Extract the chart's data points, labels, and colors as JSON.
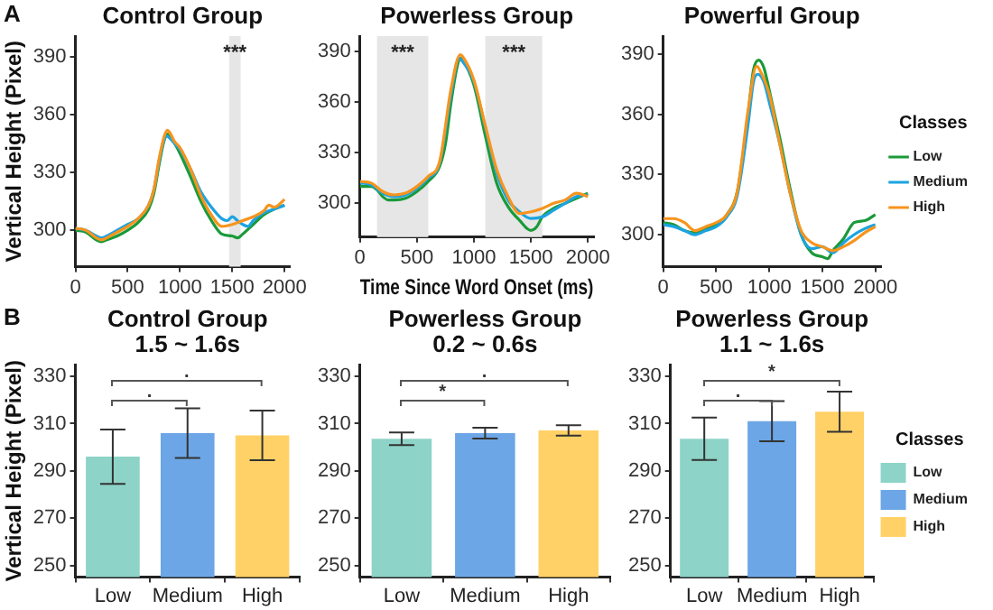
{
  "chart_data": [
    {
      "type": "line",
      "title": "Control Group",
      "ylabel": "Vertical Height (Pixel)",
      "annotations": [
        "A"
      ],
      "xlim": [
        0,
        2050
      ],
      "xticks": [
        0,
        500,
        1000,
        1500,
        2000
      ],
      "ylim": [
        281,
        401
      ],
      "yticks": [
        300,
        330,
        360,
        390
      ],
      "bands": [
        {
          "axis": "x",
          "from": 1470,
          "to": 1580,
          "label": "***",
          "color": "#e6e6e6"
        }
      ],
      "series": [
        {
          "color": "#1a9a3a",
          "x": [
            0,
            100,
            200,
            250,
            300,
            400,
            500,
            600,
            700,
            750,
            800,
            850,
            880,
            900,
            950,
            1000,
            1100,
            1200,
            1300,
            1400,
            1500,
            1550,
            1600,
            1700,
            1800,
            1900,
            2000
          ],
          "values": [
            300,
            299,
            295,
            294,
            295,
            297,
            300,
            304,
            311,
            319,
            334,
            347,
            350,
            349,
            345,
            340,
            328,
            315,
            305,
            298,
            297,
            296,
            298,
            303,
            308,
            311,
            313
          ]
        },
        {
          "color": "#1ca3e0",
          "x": [
            0,
            100,
            200,
            250,
            300,
            400,
            500,
            600,
            700,
            750,
            800,
            850,
            870,
            900,
            950,
            1000,
            1100,
            1200,
            1300,
            1400,
            1450,
            1500,
            1550,
            1600,
            1650,
            1700,
            1800,
            1900,
            2000
          ],
          "values": [
            301,
            300,
            297,
            296,
            297,
            300,
            303,
            306,
            313,
            321,
            336,
            347,
            349,
            348,
            345,
            342,
            332,
            320,
            312,
            306,
            305,
            307,
            305,
            303,
            302,
            305,
            309,
            311,
            313
          ]
        },
        {
          "color": "#f7941d",
          "x": [
            0,
            100,
            200,
            250,
            300,
            400,
            500,
            600,
            700,
            750,
            800,
            850,
            880,
            900,
            950,
            1000,
            1100,
            1200,
            1300,
            1400,
            1500,
            1600,
            1700,
            1800,
            1850,
            1900,
            2000
          ],
          "values": [
            301,
            300,
            296,
            295,
            296,
            299,
            302,
            306,
            313,
            321,
            337,
            349,
            352,
            351,
            346,
            343,
            332,
            318,
            308,
            302,
            303,
            305,
            307,
            310,
            313,
            312,
            316
          ]
        }
      ]
    },
    {
      "type": "line",
      "title": "Powerless Group",
      "xlabel": "Time Since Word Onset (ms)",
      "xlim": [
        0,
        2050
      ],
      "xticks": [
        0,
        500,
        1000,
        1500,
        2000
      ],
      "ylim": [
        280,
        399
      ],
      "yticks": [
        300,
        330,
        360,
        390
      ],
      "bands": [
        {
          "axis": "x",
          "from": 150,
          "to": 600,
          "label": "***",
          "color": "#e6e6e6"
        },
        {
          "axis": "x",
          "from": 1100,
          "to": 1600,
          "label": "***",
          "color": "#e6e6e6"
        }
      ],
      "series": [
        {
          "color": "#1a9a3a",
          "x": [
            0,
            100,
            150,
            200,
            250,
            300,
            400,
            500,
            600,
            700,
            750,
            800,
            850,
            880,
            900,
            1000,
            1100,
            1200,
            1300,
            1400,
            1500,
            1550,
            1600,
            1700,
            1800,
            1900,
            2000
          ],
          "values": [
            310,
            310,
            308,
            304,
            302,
            302,
            303,
            307,
            313,
            322,
            335,
            360,
            380,
            386,
            385,
            370,
            340,
            312,
            298,
            290,
            284,
            286,
            292,
            297,
            300,
            303,
            306
          ]
        },
        {
          "color": "#1ca3e0",
          "x": [
            0,
            100,
            200,
            300,
            400,
            500,
            600,
            700,
            800,
            870,
            900,
            1000,
            1100,
            1200,
            1300,
            1400,
            1500,
            1600,
            1700,
            1800,
            1900,
            2000
          ],
          "values": [
            312,
            311,
            306,
            304,
            305,
            309,
            315,
            324,
            365,
            386,
            384,
            372,
            345,
            318,
            302,
            295,
            291,
            292,
            296,
            300,
            304,
            305
          ]
        },
        {
          "color": "#f7941d",
          "x": [
            0,
            100,
            200,
            300,
            400,
            500,
            600,
            700,
            800,
            880,
            900,
            1000,
            1100,
            1200,
            1300,
            1400,
            1500,
            1600,
            1700,
            1800,
            1900,
            2000
          ],
          "values": [
            313,
            312,
            307,
            305,
            306,
            310,
            316,
            325,
            368,
            388,
            387,
            373,
            346,
            320,
            304,
            294,
            295,
            297,
            300,
            302,
            306,
            304
          ]
        }
      ]
    },
    {
      "type": "line",
      "title": "Powerful Group",
      "legend": "right",
      "legend_title": "Classes",
      "xlim": [
        0,
        2050
      ],
      "xticks": [
        0,
        500,
        1000,
        1500,
        2000
      ],
      "ylim": [
        284,
        399
      ],
      "yticks": [
        300,
        330,
        360,
        390
      ],
      "series": [
        {
          "name": "Low",
          "color": "#1a9a3a",
          "x": [
            0,
            100,
            200,
            300,
            400,
            500,
            600,
            700,
            800,
            850,
            900,
            950,
            1000,
            1100,
            1200,
            1300,
            1400,
            1500,
            1550,
            1600,
            1700,
            1800,
            1900,
            2000
          ],
          "values": [
            306,
            305,
            302,
            301,
            303,
            305,
            310,
            322,
            360,
            382,
            387,
            383,
            372,
            348,
            322,
            300,
            291,
            289,
            288,
            292,
            298,
            306,
            307,
            310
          ]
        },
        {
          "name": "Medium",
          "color": "#1ca3e0",
          "x": [
            0,
            100,
            200,
            300,
            400,
            500,
            600,
            700,
            800,
            850,
            890,
            950,
            1000,
            1100,
            1200,
            1300,
            1400,
            1500,
            1600,
            1700,
            1800,
            1900,
            2000
          ],
          "values": [
            305,
            304,
            302,
            300,
            302,
            304,
            309,
            320,
            355,
            376,
            380,
            376,
            366,
            345,
            320,
            300,
            293,
            294,
            291,
            296,
            300,
            303,
            305
          ]
        },
        {
          "name": "High",
          "color": "#f7941d",
          "x": [
            0,
            100,
            200,
            300,
            400,
            500,
            600,
            700,
            800,
            880,
            900,
            1000,
            1100,
            1200,
            1300,
            1400,
            1500,
            1600,
            1700,
            1800,
            1900,
            2000
          ],
          "values": [
            308,
            308,
            306,
            302,
            304,
            306,
            310,
            322,
            362,
            384,
            383,
            370,
            345,
            320,
            302,
            296,
            294,
            292,
            294,
            297,
            301,
            304
          ]
        }
      ]
    },
    {
      "type": "bar",
      "title": "Control Group",
      "subtitle": "1.5 ~ 1.6s",
      "ylabel": "Vertical Height (Pixel)",
      "annotations": [
        "B",
        ".",
        "."
      ],
      "categories": [
        "Low",
        "Medium",
        "High"
      ],
      "values": [
        296,
        306,
        305
      ],
      "errors": [
        11.5,
        10.5,
        10.5
      ],
      "colors": [
        "#8dd3c7",
        "#6ca6e6",
        "#ffd166"
      ],
      "ylim": [
        245,
        335
      ],
      "yticks": [
        250,
        270,
        290,
        310,
        330
      ]
    },
    {
      "type": "bar",
      "title": "Powerless Group",
      "subtitle": "0.2 ~ 0.6s",
      "annotations": [
        "*",
        "."
      ],
      "categories": [
        "Low",
        "Medium",
        "High"
      ],
      "values": [
        303.6,
        306,
        307.1
      ],
      "errors": [
        2.7,
        2.3,
        2.2
      ],
      "colors": [
        "#8dd3c7",
        "#6ca6e6",
        "#ffd166"
      ],
      "ylim": [
        245,
        335
      ],
      "yticks": [
        250,
        270,
        290,
        310,
        330
      ]
    },
    {
      "type": "bar",
      "title": "Powerless Group",
      "subtitle": "1.1 ~ 1.6s",
      "annotations": [
        ".",
        "*"
      ],
      "legend": "right",
      "legend_title": "Classes",
      "categories": [
        "Low",
        "Medium",
        "High"
      ],
      "series": [
        {
          "name": "Low",
          "color": "#8dd3c7",
          "values": [
            303.6,
            null,
            null
          ],
          "errors": [
            9,
            null,
            null
          ]
        },
        {
          "name": "Medium",
          "color": "#6ca6e6",
          "values": [
            null,
            311,
            null
          ],
          "errors": [
            null,
            8.5,
            null
          ]
        },
        {
          "name": "High",
          "color": "#ffd166",
          "values": [
            null,
            null,
            315
          ],
          "errors": [
            null,
            null,
            8.5
          ]
        }
      ],
      "ylim": [
        245,
        335
      ],
      "yticks": [
        250,
        270,
        290,
        310,
        330
      ]
    }
  ]
}
